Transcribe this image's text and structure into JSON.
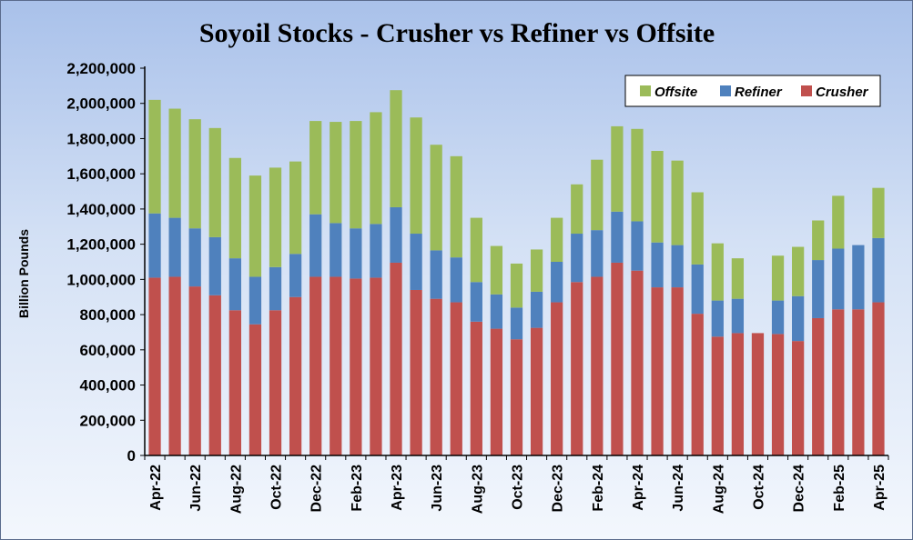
{
  "chart_data": {
    "type": "bar",
    "stacked": true,
    "title": "Soyoil Stocks - Crusher vs Refiner vs Offsite",
    "xlabel": "",
    "ylabel": "Billion Pounds",
    "ylim": [
      0,
      2200000
    ],
    "yticks": [
      "0",
      "200,000",
      "400,000",
      "600,000",
      "800,000",
      "1,000,000",
      "1,200,000",
      "1,400,000",
      "1,600,000",
      "1,800,000",
      "2,000,000",
      "2,200,000"
    ],
    "ytick_values": [
      0,
      200000,
      400000,
      600000,
      800000,
      1000000,
      1200000,
      1400000,
      1600000,
      1800000,
      2000000,
      2200000
    ],
    "grid": false,
    "legend_position": "top-right",
    "categories": [
      "Apr-22",
      "May-22",
      "Jun-22",
      "Jul-22",
      "Aug-22",
      "Sep-22",
      "Oct-22",
      "Nov-22",
      "Dec-22",
      "Jan-23",
      "Feb-23",
      "Mar-23",
      "Apr-23",
      "May-23",
      "Jun-23",
      "Jul-23",
      "Aug-23",
      "Sep-23",
      "Oct-23",
      "Nov-23",
      "Dec-23",
      "Jan-24",
      "Feb-24",
      "Mar-24",
      "Apr-24",
      "May-24",
      "Jun-24",
      "Jul-24",
      "Aug-24",
      "Sep-24",
      "Oct-24",
      "Nov-24",
      "Dec-24",
      "Jan-25",
      "Feb-25",
      "Mar-25",
      "Apr-25"
    ],
    "xtick_labels": [
      "Apr-22",
      "Jun-22",
      "Aug-22",
      "Oct-22",
      "Dec-22",
      "Feb-23",
      "Apr-23",
      "Jun-23",
      "Aug-23",
      "Oct-23",
      "Dec-23",
      "Feb-24",
      "Apr-24",
      "Jun-24",
      "Aug-24",
      "Oct-24",
      "Dec-24",
      "Feb-25",
      "Apr-25"
    ],
    "series": [
      {
        "name": "Crusher",
        "color": "#c0504d",
        "values": [
          1010000,
          1015000,
          960000,
          910000,
          825000,
          745000,
          825000,
          900000,
          1015000,
          1015000,
          1005000,
          1010000,
          1095000,
          940000,
          890000,
          870000,
          760000,
          720000,
          660000,
          725000,
          870000,
          985000,
          1015000,
          1095000,
          1050000,
          955000,
          955000,
          805000,
          675000,
          695000,
          695000,
          690000,
          650000,
          780000,
          830000,
          830000,
          870000
        ]
      },
      {
        "name": "Refiner",
        "color": "#4f81bd",
        "values": [
          365000,
          335000,
          330000,
          330000,
          295000,
          270000,
          245000,
          245000,
          355000,
          305000,
          285000,
          305000,
          315000,
          320000,
          275000,
          255000,
          225000,
          195000,
          180000,
          205000,
          230000,
          275000,
          265000,
          290000,
          280000,
          255000,
          240000,
          280000,
          205000,
          195000,
          0,
          190000,
          255000,
          330000,
          345000,
          365000,
          365000
        ]
      },
      {
        "name": "Offsite",
        "color": "#9bbb59",
        "values": [
          645000,
          620000,
          620000,
          620000,
          570000,
          575000,
          565000,
          525000,
          530000,
          575000,
          610000,
          635000,
          665000,
          660000,
          600000,
          575000,
          365000,
          275000,
          250000,
          240000,
          250000,
          280000,
          400000,
          485000,
          525000,
          520000,
          480000,
          410000,
          325000,
          230000,
          0,
          255000,
          280000,
          225000,
          300000,
          0,
          285000
        ]
      }
    ]
  }
}
